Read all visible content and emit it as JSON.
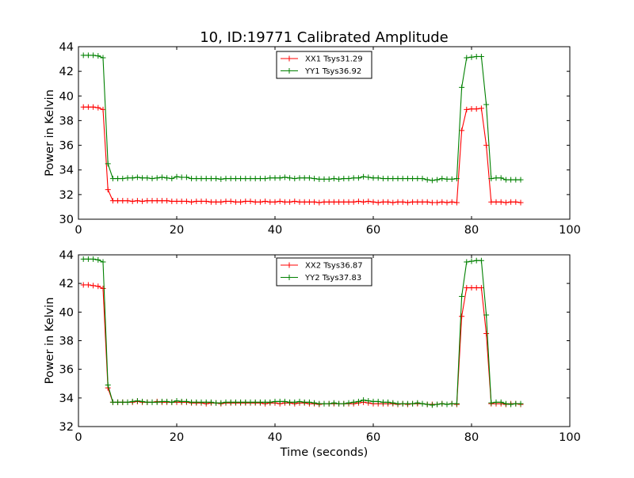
{
  "figure": {
    "title": "10, ID:19771 Calibrated Amplitude",
    "xlabel": "Time (seconds)"
  },
  "chart_data": [
    {
      "type": "line",
      "title": "10, ID:19771 Calibrated Amplitude",
      "xlabel": "",
      "ylabel": "Power in Kelvin",
      "xlim": [
        0,
        100
      ],
      "ylim": [
        30,
        44
      ],
      "xticks": [
        "0",
        "20",
        "40",
        "60",
        "80",
        "100"
      ],
      "yticks": [
        "30",
        "32",
        "34",
        "36",
        "38",
        "40",
        "42",
        "44"
      ],
      "grid": false,
      "legend_position": "top-center",
      "series": [
        {
          "name": "XX1 Tsys31.29",
          "color": "#ff0000",
          "x": [
            1,
            2,
            3,
            4,
            5,
            6,
            7,
            8,
            9,
            10,
            11,
            12,
            13,
            14,
            15,
            16,
            17,
            18,
            19,
            20,
            21,
            22,
            23,
            24,
            25,
            26,
            27,
            28,
            29,
            30,
            31,
            32,
            33,
            34,
            35,
            36,
            37,
            38,
            39,
            40,
            41,
            42,
            43,
            44,
            45,
            46,
            47,
            48,
            49,
            50,
            51,
            52,
            53,
            54,
            55,
            56,
            57,
            58,
            59,
            60,
            61,
            62,
            63,
            64,
            65,
            66,
            67,
            68,
            69,
            70,
            71,
            72,
            73,
            74,
            75,
            76,
            77,
            78,
            79,
            80,
            81,
            82,
            83,
            84,
            85,
            86,
            87,
            88,
            89,
            90
          ],
          "y": [
            39.1,
            39.1,
            39.1,
            39.05,
            38.9,
            32.4,
            31.5,
            31.5,
            31.5,
            31.5,
            31.45,
            31.5,
            31.45,
            31.5,
            31.5,
            31.5,
            31.5,
            31.5,
            31.45,
            31.45,
            31.45,
            31.45,
            31.4,
            31.45,
            31.45,
            31.45,
            31.4,
            31.4,
            31.4,
            31.45,
            31.45,
            31.4,
            31.4,
            31.45,
            31.45,
            31.4,
            31.4,
            31.45,
            31.4,
            31.4,
            31.45,
            31.4,
            31.4,
            31.45,
            31.4,
            31.4,
            31.4,
            31.4,
            31.35,
            31.4,
            31.4,
            31.4,
            31.4,
            31.4,
            31.4,
            31.4,
            31.45,
            31.4,
            31.45,
            31.4,
            31.35,
            31.4,
            31.4,
            31.35,
            31.4,
            31.4,
            31.35,
            31.4,
            31.4,
            31.4,
            31.4,
            31.35,
            31.35,
            31.4,
            31.35,
            31.4,
            31.35,
            37.2,
            38.9,
            38.95,
            38.95,
            39.0,
            36.0,
            31.4,
            31.4,
            31.4,
            31.35,
            31.4,
            31.4,
            31.35
          ]
        },
        {
          "name": "YY1 Tsys36.92",
          "color": "#008000",
          "x": [
            1,
            2,
            3,
            4,
            5,
            6,
            7,
            8,
            9,
            10,
            11,
            12,
            13,
            14,
            15,
            16,
            17,
            18,
            19,
            20,
            21,
            22,
            23,
            24,
            25,
            26,
            27,
            28,
            29,
            30,
            31,
            32,
            33,
            34,
            35,
            36,
            37,
            38,
            39,
            40,
            41,
            42,
            43,
            44,
            45,
            46,
            47,
            48,
            49,
            50,
            51,
            52,
            53,
            54,
            55,
            56,
            57,
            58,
            59,
            60,
            61,
            62,
            63,
            64,
            65,
            66,
            67,
            68,
            69,
            70,
            71,
            72,
            73,
            74,
            75,
            76,
            77,
            78,
            79,
            80,
            81,
            82,
            83,
            84,
            85,
            86,
            87,
            88,
            89,
            90
          ],
          "y": [
            43.3,
            43.3,
            43.3,
            43.25,
            43.1,
            34.5,
            33.3,
            33.3,
            33.3,
            33.35,
            33.35,
            33.4,
            33.35,
            33.35,
            33.3,
            33.35,
            33.4,
            33.35,
            33.3,
            33.45,
            33.4,
            33.4,
            33.3,
            33.3,
            33.3,
            33.3,
            33.3,
            33.3,
            33.25,
            33.3,
            33.3,
            33.3,
            33.3,
            33.3,
            33.3,
            33.3,
            33.3,
            33.3,
            33.35,
            33.35,
            33.35,
            33.4,
            33.35,
            33.3,
            33.35,
            33.35,
            33.35,
            33.3,
            33.25,
            33.25,
            33.25,
            33.3,
            33.25,
            33.3,
            33.3,
            33.35,
            33.35,
            33.45,
            33.4,
            33.35,
            33.35,
            33.3,
            33.3,
            33.3,
            33.3,
            33.3,
            33.3,
            33.3,
            33.3,
            33.3,
            33.2,
            33.15,
            33.2,
            33.3,
            33.25,
            33.25,
            33.3,
            40.7,
            43.1,
            43.15,
            43.2,
            43.2,
            39.3,
            33.3,
            33.35,
            33.35,
            33.2,
            33.2,
            33.2,
            33.2
          ]
        }
      ]
    },
    {
      "type": "line",
      "title": "",
      "xlabel": "Time (seconds)",
      "ylabel": "Power in Kelvin",
      "xlim": [
        0,
        100
      ],
      "ylim": [
        32,
        44
      ],
      "xticks": [
        "0",
        "20",
        "40",
        "60",
        "80",
        "100"
      ],
      "yticks": [
        "32",
        "34",
        "36",
        "38",
        "40",
        "42",
        "44"
      ],
      "grid": false,
      "legend_position": "top-center",
      "series": [
        {
          "name": "XX2 Tsys36.87",
          "color": "#ff0000",
          "x": [
            1,
            2,
            3,
            4,
            5,
            6,
            7,
            8,
            9,
            10,
            11,
            12,
            13,
            14,
            15,
            16,
            17,
            18,
            19,
            20,
            21,
            22,
            23,
            24,
            25,
            26,
            27,
            28,
            29,
            30,
            31,
            32,
            33,
            34,
            35,
            36,
            37,
            38,
            39,
            40,
            41,
            42,
            43,
            44,
            45,
            46,
            47,
            48,
            49,
            50,
            51,
            52,
            53,
            54,
            55,
            56,
            57,
            58,
            59,
            60,
            61,
            62,
            63,
            64,
            65,
            66,
            67,
            68,
            69,
            70,
            71,
            72,
            73,
            74,
            75,
            76,
            77,
            78,
            79,
            80,
            81,
            82,
            83,
            84,
            85,
            86,
            87,
            88,
            89,
            90
          ],
          "y": [
            41.9,
            41.9,
            41.85,
            41.8,
            41.65,
            34.7,
            33.7,
            33.7,
            33.7,
            33.7,
            33.7,
            33.75,
            33.7,
            33.7,
            33.7,
            33.75,
            33.7,
            33.7,
            33.7,
            33.7,
            33.7,
            33.7,
            33.65,
            33.65,
            33.65,
            33.6,
            33.65,
            33.65,
            33.6,
            33.65,
            33.65,
            33.65,
            33.65,
            33.65,
            33.65,
            33.65,
            33.65,
            33.6,
            33.65,
            33.65,
            33.6,
            33.65,
            33.65,
            33.6,
            33.65,
            33.65,
            33.6,
            33.6,
            33.55,
            33.6,
            33.6,
            33.6,
            33.6,
            33.6,
            33.6,
            33.6,
            33.65,
            33.7,
            33.65,
            33.6,
            33.6,
            33.6,
            33.6,
            33.6,
            33.55,
            33.6,
            33.55,
            33.6,
            33.6,
            33.6,
            33.55,
            33.55,
            33.55,
            33.6,
            33.55,
            33.6,
            33.55,
            39.7,
            41.7,
            41.7,
            41.7,
            41.7,
            38.5,
            33.6,
            33.6,
            33.6,
            33.55,
            33.6,
            33.6,
            33.55
          ]
        },
        {
          "name": "YY2 Tsys37.83",
          "color": "#008000",
          "x": [
            1,
            2,
            3,
            4,
            5,
            6,
            7,
            8,
            9,
            10,
            11,
            12,
            13,
            14,
            15,
            16,
            17,
            18,
            19,
            20,
            21,
            22,
            23,
            24,
            25,
            26,
            27,
            28,
            29,
            30,
            31,
            32,
            33,
            34,
            35,
            36,
            37,
            38,
            39,
            40,
            41,
            42,
            43,
            44,
            45,
            46,
            47,
            48,
            49,
            50,
            51,
            52,
            53,
            54,
            55,
            56,
            57,
            58,
            59,
            60,
            61,
            62,
            63,
            64,
            65,
            66,
            67,
            68,
            69,
            70,
            71,
            72,
            73,
            74,
            75,
            76,
            77,
            78,
            79,
            80,
            81,
            82,
            83,
            84,
            85,
            86,
            87,
            88,
            89,
            90
          ],
          "y": [
            43.7,
            43.7,
            43.7,
            43.65,
            43.5,
            34.9,
            33.7,
            33.7,
            33.7,
            33.7,
            33.75,
            33.8,
            33.75,
            33.7,
            33.7,
            33.7,
            33.75,
            33.75,
            33.7,
            33.8,
            33.75,
            33.75,
            33.7,
            33.7,
            33.7,
            33.7,
            33.7,
            33.65,
            33.65,
            33.7,
            33.7,
            33.7,
            33.7,
            33.7,
            33.7,
            33.7,
            33.7,
            33.7,
            33.7,
            33.75,
            33.75,
            33.75,
            33.7,
            33.7,
            33.75,
            33.7,
            33.7,
            33.65,
            33.6,
            33.6,
            33.6,
            33.65,
            33.6,
            33.6,
            33.65,
            33.7,
            33.75,
            33.85,
            33.8,
            33.75,
            33.75,
            33.7,
            33.7,
            33.65,
            33.6,
            33.6,
            33.6,
            33.6,
            33.65,
            33.6,
            33.55,
            33.5,
            33.55,
            33.6,
            33.55,
            33.6,
            33.6,
            41.1,
            43.5,
            43.55,
            43.6,
            43.6,
            39.8,
            33.65,
            33.7,
            33.7,
            33.6,
            33.55,
            33.6,
            33.6
          ]
        }
      ]
    }
  ]
}
